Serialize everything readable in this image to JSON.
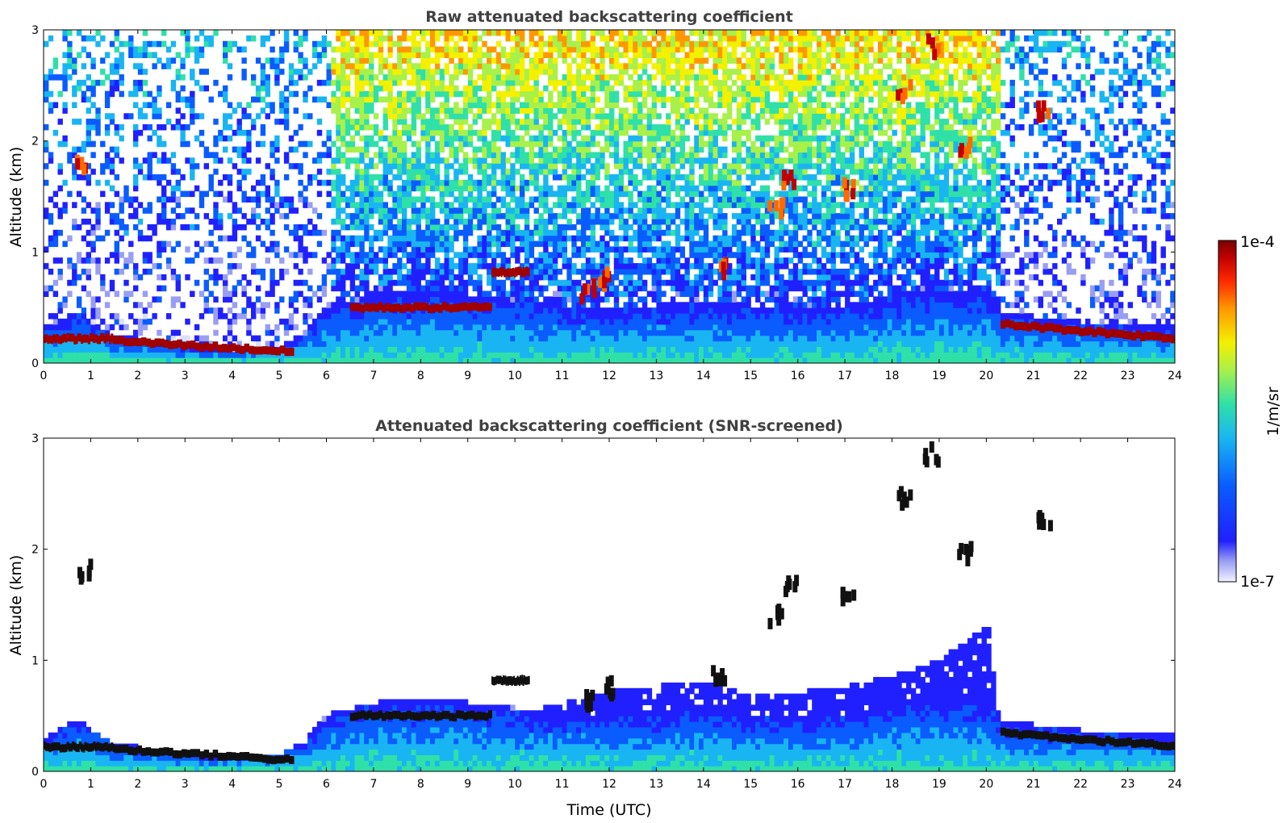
{
  "chart_data": [
    {
      "type": "heatmap",
      "title": "Raw attenuated backscattering coefficient",
      "xlabel": "",
      "ylabel": "Altitude (km)",
      "xlim": [
        0,
        24
      ],
      "ylim": [
        0,
        3
      ],
      "x_ticks": [
        "0",
        "1",
        "2",
        "3",
        "4",
        "5",
        "6",
        "7",
        "8",
        "9",
        "10",
        "11",
        "12",
        "13",
        "14",
        "15",
        "16",
        "17",
        "18",
        "19",
        "20",
        "21",
        "22",
        "23",
        "24"
      ],
      "y_ticks": [
        "0",
        "1",
        "2",
        "3"
      ],
      "noise": "high",
      "boundary_layer": {
        "x": [
          0,
          0.7,
          1,
          1.5,
          2,
          3,
          4,
          5,
          5.5,
          6,
          6.5,
          7,
          8,
          9,
          10,
          11,
          12,
          13,
          14,
          15,
          16,
          17,
          18,
          19,
          20,
          20.3,
          21,
          22,
          23,
          24
        ],
        "top": [
          0.3,
          0.45,
          0.35,
          0.22,
          0.2,
          0.12,
          0.1,
          0.15,
          0.25,
          0.5,
          0.55,
          0.6,
          0.62,
          0.6,
          0.55,
          0.5,
          0.48,
          0.5,
          0.55,
          0.5,
          0.45,
          0.5,
          0.6,
          0.65,
          0.62,
          0.45,
          0.4,
          0.35,
          0.32,
          0.3
        ]
      },
      "strong_layers": [
        {
          "x": [
            0,
            1.5
          ],
          "y": [
            0.22,
            0.22
          ]
        },
        {
          "x": [
            1.5,
            5.3
          ],
          "y": [
            0.2,
            0.1
          ]
        },
        {
          "x": [
            6.5,
            9.5
          ],
          "y": [
            0.5,
            0.5
          ]
        },
        {
          "x": [
            9.5,
            10.3
          ],
          "y": [
            0.82,
            0.82
          ]
        },
        {
          "x": [
            20.3,
            24
          ],
          "y": [
            0.35,
            0.22
          ]
        }
      ],
      "clouds": [
        {
          "x": 0.8,
          "y": 1.85
        },
        {
          "x": 11.5,
          "y": 0.7
        },
        {
          "x": 11.9,
          "y": 0.8
        },
        {
          "x": 14.3,
          "y": 0.9
        },
        {
          "x": 15.5,
          "y": 1.45
        },
        {
          "x": 15.8,
          "y": 1.7
        },
        {
          "x": 17.0,
          "y": 1.6
        },
        {
          "x": 18.2,
          "y": 2.5
        },
        {
          "x": 18.8,
          "y": 2.9
        },
        {
          "x": 19.5,
          "y": 2.0
        },
        {
          "x": 21.2,
          "y": 2.3
        }
      ]
    },
    {
      "type": "heatmap",
      "title": "Attenuated backscattering coefficient (SNR-screened)",
      "xlabel": "Time (UTC)",
      "ylabel": "Altitude (km)",
      "xlim": [
        0,
        24
      ],
      "ylim": [
        0,
        3
      ],
      "x_ticks": [
        "0",
        "1",
        "2",
        "3",
        "4",
        "5",
        "6",
        "7",
        "8",
        "9",
        "10",
        "11",
        "12",
        "13",
        "14",
        "15",
        "16",
        "17",
        "18",
        "19",
        "20",
        "21",
        "22",
        "23",
        "24"
      ],
      "y_ticks": [
        "0",
        "1",
        "2",
        "3"
      ],
      "noise": "screened",
      "screened_region_top": {
        "x": [
          9.8,
          11,
          12,
          13,
          14,
          15,
          16,
          17,
          18,
          19,
          20,
          20.2
        ],
        "top": [
          0.45,
          0.6,
          0.7,
          0.75,
          0.8,
          0.65,
          0.7,
          0.75,
          0.85,
          1.0,
          1.3,
          0.5
        ]
      }
    }
  ],
  "colorbar": {
    "min_label": "1e-7",
    "max_label": "1e-4",
    "label": "1/m/sr",
    "colormap": [
      "#dde0f7",
      "#9a9ef2",
      "#2020ff",
      "#0a5cff",
      "#19b5f2",
      "#2fe0a8",
      "#a8f04a",
      "#f3f000",
      "#ff9800",
      "#ff2a00",
      "#c00000",
      "#7a0000"
    ]
  }
}
